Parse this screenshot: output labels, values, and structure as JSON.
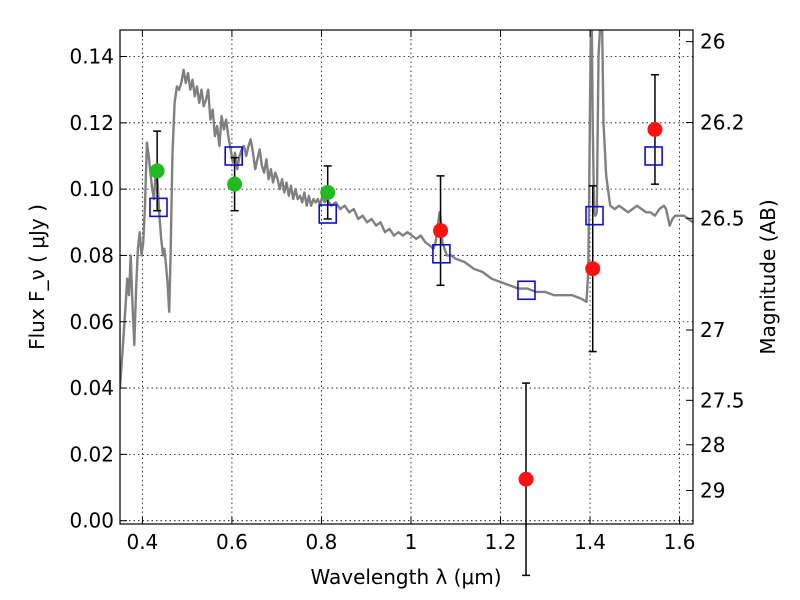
{
  "chart_data": {
    "type": "scatter",
    "xlabel": "Wavelength  λ (μm)",
    "ylabel": "Flux  F_ν  ( μJy )",
    "y2label": "Magnitude (AB)",
    "xlim": [
      0.35,
      1.63
    ],
    "ylim": [
      -0.001,
      0.148
    ],
    "grid": true,
    "x_ticks": [
      {
        "value": 0.4,
        "label": "0.4"
      },
      {
        "value": 0.6,
        "label": "0.6"
      },
      {
        "value": 0.8,
        "label": "0.8"
      },
      {
        "value": 1.0,
        "label": "1"
      },
      {
        "value": 1.2,
        "label": "1.2"
      },
      {
        "value": 1.4,
        "label": "1.4"
      },
      {
        "value": 1.6,
        "label": "1.6"
      }
    ],
    "y_ticks": [
      {
        "value": 0.0,
        "label": "0.00"
      },
      {
        "value": 0.02,
        "label": "0.02"
      },
      {
        "value": 0.04,
        "label": "0.04"
      },
      {
        "value": 0.06,
        "label": "0.06"
      },
      {
        "value": 0.08,
        "label": "0.08"
      },
      {
        "value": 0.1,
        "label": "0.10"
      },
      {
        "value": 0.12,
        "label": "0.12"
      },
      {
        "value": 0.14,
        "label": "0.14"
      }
    ],
    "y2_ticks": [
      {
        "flux": 0.1445,
        "label": "26"
      },
      {
        "flux": 0.1201,
        "label": "26.2"
      },
      {
        "flux": 0.0912,
        "label": "26.5"
      },
      {
        "flux": 0.0575,
        "label": "27"
      },
      {
        "flux": 0.0363,
        "label": "27.5"
      },
      {
        "flux": 0.0229,
        "label": "28"
      },
      {
        "flux": 0.0091,
        "label": "29"
      }
    ],
    "series": [
      {
        "kind": "line",
        "color": "#808080",
        "points": [
          [
            0.35,
            0.04
          ],
          [
            0.358,
            0.056
          ],
          [
            0.362,
            0.064
          ],
          [
            0.366,
            0.073
          ],
          [
            0.37,
            0.068
          ],
          [
            0.374,
            0.08
          ],
          [
            0.378,
            0.065
          ],
          [
            0.382,
            0.053
          ],
          [
            0.386,
            0.07
          ],
          [
            0.39,
            0.082
          ],
          [
            0.394,
            0.087
          ],
          [
            0.398,
            0.08
          ],
          [
            0.402,
            0.084
          ],
          [
            0.406,
            0.096
          ],
          [
            0.41,
            0.114
          ],
          [
            0.414,
            0.11
          ],
          [
            0.418,
            0.105
          ],
          [
            0.422,
            0.1
          ],
          [
            0.426,
            0.097
          ],
          [
            0.43,
            0.106
          ],
          [
            0.434,
            0.102
          ],
          [
            0.438,
            0.092
          ],
          [
            0.442,
            0.085
          ],
          [
            0.446,
            0.08
          ],
          [
            0.449,
            0.082
          ],
          [
            0.452,
            0.078
          ],
          [
            0.456,
            0.072
          ],
          [
            0.46,
            0.063
          ],
          [
            0.463,
            0.08
          ],
          [
            0.467,
            0.11
          ],
          [
            0.472,
            0.126
          ],
          [
            0.477,
            0.131
          ],
          [
            0.482,
            0.13
          ],
          [
            0.487,
            0.132
          ],
          [
            0.492,
            0.136
          ],
          [
            0.497,
            0.132
          ],
          [
            0.502,
            0.135
          ],
          [
            0.507,
            0.13
          ],
          [
            0.512,
            0.133
          ],
          [
            0.517,
            0.128
          ],
          [
            0.522,
            0.131
          ],
          [
            0.527,
            0.126
          ],
          [
            0.532,
            0.13
          ],
          [
            0.537,
            0.125
          ],
          [
            0.542,
            0.127
          ],
          [
            0.547,
            0.13
          ],
          [
            0.552,
            0.121
          ],
          [
            0.557,
            0.124
          ],
          [
            0.562,
            0.116
          ],
          [
            0.567,
            0.119
          ],
          [
            0.572,
            0.113
          ],
          [
            0.577,
            0.122
          ],
          [
            0.582,
            0.118
          ],
          [
            0.587,
            0.121
          ],
          [
            0.592,
            0.116
          ],
          [
            0.597,
            0.112
          ],
          [
            0.602,
            0.108
          ],
          [
            0.607,
            0.111
          ],
          [
            0.612,
            0.106
          ],
          [
            0.617,
            0.11
          ],
          [
            0.622,
            0.112
          ],
          [
            0.627,
            0.113
          ],
          [
            0.632,
            0.11
          ],
          [
            0.637,
            0.113
          ],
          [
            0.642,
            0.115
          ],
          [
            0.647,
            0.111
          ],
          [
            0.652,
            0.106
          ],
          [
            0.657,
            0.109
          ],
          [
            0.662,
            0.112
          ],
          [
            0.667,
            0.107
          ],
          [
            0.672,
            0.105
          ],
          [
            0.677,
            0.109
          ],
          [
            0.682,
            0.103
          ],
          [
            0.687,
            0.106
          ],
          [
            0.692,
            0.102
          ],
          [
            0.697,
            0.105
          ],
          [
            0.702,
            0.103
          ],
          [
            0.707,
            0.1
          ],
          [
            0.712,
            0.103
          ],
          [
            0.717,
            0.099
          ],
          [
            0.722,
            0.102
          ],
          [
            0.727,
            0.098
          ],
          [
            0.732,
            0.101
          ],
          [
            0.737,
            0.097
          ],
          [
            0.742,
            0.1
          ],
          [
            0.747,
            0.097
          ],
          [
            0.752,
            0.098
          ],
          [
            0.757,
            0.096
          ],
          [
            0.762,
            0.099
          ],
          [
            0.767,
            0.095
          ],
          [
            0.772,
            0.098
          ],
          [
            0.777,
            0.095
          ],
          [
            0.782,
            0.097
          ],
          [
            0.787,
            0.096
          ],
          [
            0.792,
            0.097
          ],
          [
            0.797,
            0.095
          ],
          [
            0.802,
            0.098
          ],
          [
            0.807,
            0.096
          ],
          [
            0.812,
            0.097
          ],
          [
            0.822,
            0.095
          ],
          [
            0.832,
            0.096
          ],
          [
            0.842,
            0.094
          ],
          [
            0.852,
            0.095
          ],
          [
            0.862,
            0.093
          ],
          [
            0.872,
            0.094
          ],
          [
            0.882,
            0.091
          ],
          [
            0.892,
            0.092
          ],
          [
            0.902,
            0.09
          ],
          [
            0.912,
            0.091
          ],
          [
            0.922,
            0.089
          ],
          [
            0.932,
            0.09
          ],
          [
            0.942,
            0.087
          ],
          [
            0.952,
            0.088
          ],
          [
            0.962,
            0.086
          ],
          [
            0.972,
            0.087
          ],
          [
            0.982,
            0.086
          ],
          [
            0.992,
            0.087
          ],
          [
            1.002,
            0.086
          ],
          [
            1.012,
            0.085
          ],
          [
            1.022,
            0.086
          ],
          [
            1.032,
            0.084
          ],
          [
            1.042,
            0.083
          ],
          [
            1.05,
            0.082
          ],
          [
            1.055,
            0.084
          ],
          [
            1.06,
            0.089
          ],
          [
            1.064,
            0.093
          ],
          [
            1.067,
            0.09
          ],
          [
            1.07,
            0.084
          ],
          [
            1.08,
            0.08
          ],
          [
            1.09,
            0.08
          ],
          [
            1.1,
            0.079
          ],
          [
            1.12,
            0.078
          ],
          [
            1.14,
            0.076
          ],
          [
            1.16,
            0.075
          ],
          [
            1.18,
            0.073
          ],
          [
            1.2,
            0.072
          ],
          [
            1.22,
            0.071
          ],
          [
            1.24,
            0.07
          ],
          [
            1.26,
            0.07
          ],
          [
            1.28,
            0.069
          ],
          [
            1.3,
            0.069
          ],
          [
            1.32,
            0.068
          ],
          [
            1.34,
            0.068
          ],
          [
            1.36,
            0.068
          ],
          [
            1.38,
            0.067
          ],
          [
            1.392,
            0.066
          ],
          [
            1.396,
            0.075
          ],
          [
            1.398,
            0.095
          ],
          [
            1.4,
            0.125
          ],
          [
            1.402,
            0.15
          ],
          [
            1.404,
            0.15
          ],
          [
            1.406,
            0.12
          ],
          [
            1.409,
            0.093
          ],
          [
            1.412,
            0.092
          ],
          [
            1.415,
            0.093
          ],
          [
            1.419,
            0.14
          ],
          [
            1.423,
            0.15
          ],
          [
            1.427,
            0.15
          ],
          [
            1.43,
            0.12
          ],
          [
            1.436,
            0.104
          ],
          [
            1.445,
            0.095
          ],
          [
            1.455,
            0.094
          ],
          [
            1.465,
            0.095
          ],
          [
            1.475,
            0.094
          ],
          [
            1.485,
            0.093
          ],
          [
            1.495,
            0.094
          ],
          [
            1.505,
            0.095
          ],
          [
            1.515,
            0.094
          ],
          [
            1.525,
            0.093
          ],
          [
            1.535,
            0.093
          ],
          [
            1.545,
            0.092
          ],
          [
            1.555,
            0.094
          ],
          [
            1.565,
            0.095
          ],
          [
            1.57,
            0.094
          ],
          [
            1.578,
            0.089
          ],
          [
            1.584,
            0.091
          ],
          [
            1.59,
            0.092
          ],
          [
            1.6,
            0.092
          ],
          [
            1.61,
            0.092
          ],
          [
            1.62,
            0.091
          ],
          [
            1.63,
            0.09
          ]
        ]
      },
      {
        "kind": "points",
        "color": "#22bb22",
        "points": [
          {
            "x": 0.433,
            "y": 0.1055,
            "err": 0.012
          },
          {
            "x": 0.606,
            "y": 0.1015,
            "err": 0.008
          },
          {
            "x": 0.814,
            "y": 0.099,
            "err": 0.008
          }
        ]
      },
      {
        "kind": "points",
        "color": "#ff1111",
        "points": [
          {
            "x": 1.066,
            "y": 0.0875,
            "err": 0.0165
          },
          {
            "x": 1.257,
            "y": 0.0125,
            "err": 0.029
          },
          {
            "x": 1.406,
            "y": 0.076,
            "err": 0.025
          },
          {
            "x": 1.545,
            "y": 0.118,
            "err": 0.0165
          }
        ]
      },
      {
        "kind": "squares",
        "color": "#1010cc",
        "points": [
          {
            "x": 0.436,
            "y": 0.0945
          },
          {
            "x": 0.604,
            "y": 0.11
          },
          {
            "x": 0.814,
            "y": 0.0925
          },
          {
            "x": 1.068,
            "y": 0.0805
          },
          {
            "x": 1.258,
            "y": 0.0695
          },
          {
            "x": 1.41,
            "y": 0.092
          },
          {
            "x": 1.542,
            "y": 0.11
          }
        ]
      }
    ]
  }
}
